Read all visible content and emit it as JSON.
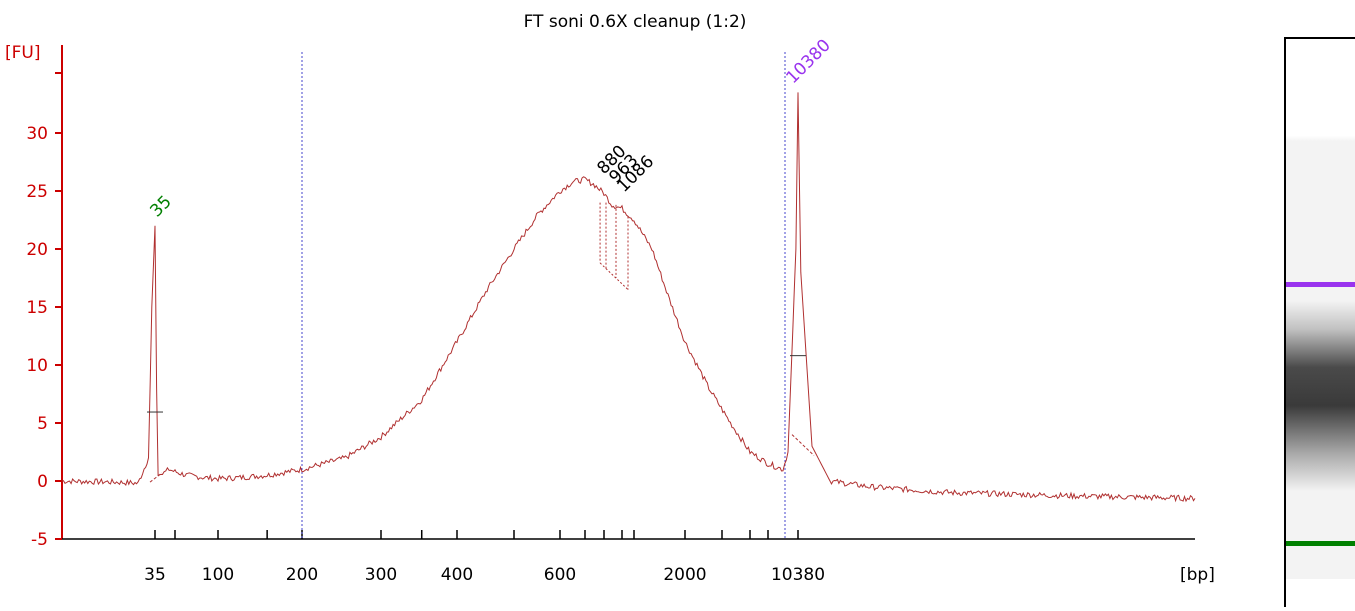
{
  "chart_data": {
    "type": "line",
    "title": "FT soni 0.6X cleanup (1:2)",
    "ylabel": "[FU]",
    "xlabel": "[bp]",
    "ylim": [
      -5,
      35
    ],
    "y_ticks": [
      -5,
      0,
      5,
      10,
      15,
      20,
      25,
      30
    ],
    "x_tick_labels": [
      "35",
      "100",
      "200",
      "300",
      "400",
      "600",
      "2000",
      "10380"
    ],
    "x_scale": "nonlinear (size-calibrated ladder)",
    "grid": false,
    "markers": [
      {
        "name": "lower marker",
        "x_bp": 35,
        "peak_fu": 22.0,
        "label": "35",
        "color": "#008000"
      },
      {
        "name": "upper marker",
        "x_bp": 10380,
        "peak_fu": 33.5,
        "label": "10380",
        "color": "#9933ee"
      }
    ],
    "peak_labels": [
      "880",
      "963",
      "1086"
    ],
    "region_boundaries_bp": [
      200,
      10380
    ],
    "series": [
      {
        "values_x_bp": [
          15,
          25,
          30,
          33,
          34,
          35,
          36,
          37,
          40,
          45,
          50,
          60,
          80,
          100,
          120,
          150,
          200,
          250,
          300,
          350,
          400,
          450,
          500,
          550,
          600,
          650,
          700,
          750,
          800,
          880,
          963,
          1086,
          1300,
          1600,
          2000,
          2600,
          3500,
          5000,
          7000,
          9500,
          10000,
          10300,
          10380,
          10500,
          11000,
          13000,
          17000,
          25000,
          40000,
          60000
        ],
        "values_fu": [
          0,
          -0.1,
          -0.2,
          2,
          15,
          22,
          8,
          0.5,
          0.6,
          1.0,
          0.8,
          0.5,
          0.3,
          0.2,
          0.3,
          0.5,
          1.0,
          2.0,
          3.8,
          7.0,
          12.0,
          16.5,
          20.0,
          23.0,
          25.0,
          25.8,
          26.0,
          25.5,
          24.8,
          23.8,
          23.5,
          22.5,
          20.0,
          16.0,
          12.0,
          8.0,
          5.0,
          2.5,
          1.5,
          1.0,
          2.5,
          20.0,
          33.5,
          18.0,
          3.0,
          0,
          -0.5,
          -1.0,
          -1.3,
          -1.5
        ],
        "color": "#b03030"
      }
    ]
  },
  "gel": {
    "bands": [
      {
        "name": "upper marker band",
        "color": "#9933ee"
      },
      {
        "name": "lower marker band",
        "color": "#008000"
      }
    ]
  }
}
